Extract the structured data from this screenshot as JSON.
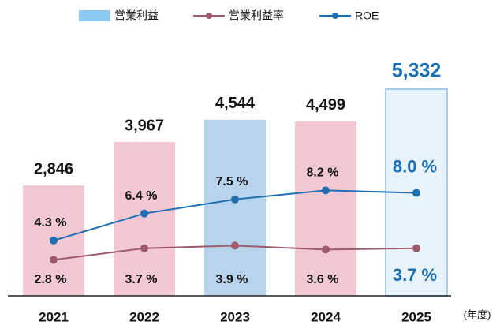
{
  "chart_data": {
    "type": "bar-line",
    "categories": [
      "2021",
      "2022",
      "2023",
      "2024",
      "2025"
    ],
    "x_label": "(年度)",
    "series": [
      {
        "name": "営業利益",
        "type": "bar",
        "color": "#8ec9f2",
        "colors": [
          "#f2c9d2",
          "#f2c9d2",
          "#b8d3ec",
          "#f2c9d2",
          "#e9f3fc"
        ],
        "values": [
          2846,
          3967,
          4544,
          4499,
          5332
        ],
        "value_labels": [
          "2,846",
          "3,967",
          "4,544",
          "4,499",
          "5,332"
        ]
      },
      {
        "name": "営業利益率",
        "type": "line",
        "color": "#9e5a6a",
        "values": [
          2.8,
          3.7,
          3.9,
          3.6,
          3.7
        ],
        "value_labels": [
          "2.8 %",
          "3.7 %",
          "3.9 %",
          "3.6 %",
          "3.7 %"
        ]
      },
      {
        "name": "ROE",
        "type": "line",
        "color": "#1f6fb2",
        "values": [
          4.3,
          6.4,
          7.5,
          8.2,
          8.0
        ],
        "value_labels": [
          "4.3 %",
          "6.4 %",
          "7.5 %",
          "8.2 %",
          "8.0 %"
        ]
      }
    ],
    "highlight_color": "#1a6fb5"
  }
}
